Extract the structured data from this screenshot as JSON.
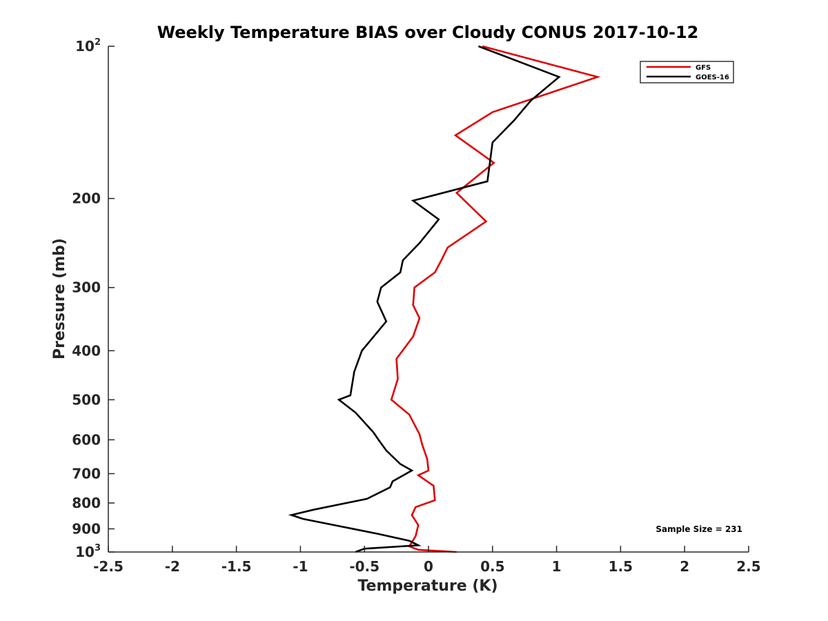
{
  "chart_data": {
    "type": "line",
    "title": "Weekly Temperature BIAS over Cloudy CONUS 2017-10-12",
    "xlabel": "Temperature (K)",
    "ylabel": "Pressure (mb)",
    "xlim": [
      -2.5,
      2.5
    ],
    "ylim": [
      100,
      1000
    ],
    "y_scale": "log",
    "y_reversed": true,
    "grid": false,
    "legend_position": "top-right",
    "x_ticks": [
      -2.5,
      -2,
      -1.5,
      -1,
      -0.5,
      0,
      0.5,
      1,
      1.5,
      2,
      2.5
    ],
    "x_tick_labels": [
      "-2.5",
      "-2",
      "-1.5",
      "-1",
      "-0.5",
      "0",
      "0.5",
      "1",
      "1.5",
      "2",
      "2.5"
    ],
    "y_ticks": [
      {
        "value": 100,
        "base": "10",
        "exp": "2"
      },
      {
        "value": 200,
        "label": "200"
      },
      {
        "value": 300,
        "label": "300"
      },
      {
        "value": 400,
        "label": "400"
      },
      {
        "value": 500,
        "label": "500"
      },
      {
        "value": 600,
        "label": "600"
      },
      {
        "value": 700,
        "label": "700"
      },
      {
        "value": 800,
        "label": "800"
      },
      {
        "value": 900,
        "label": "900"
      },
      {
        "value": 1000,
        "base": "10",
        "exp": "3"
      }
    ],
    "annotation": "Sample Size = 231",
    "series": [
      {
        "name": "GFS",
        "color": "#e00000",
        "points": [
          [
            0.42,
            100
          ],
          [
            1.32,
            115
          ],
          [
            0.5,
            135
          ],
          [
            0.21,
            150
          ],
          [
            0.51,
            170
          ],
          [
            0.22,
            195
          ],
          [
            0.45,
            222
          ],
          [
            0.15,
            250
          ],
          [
            0.1,
            265
          ],
          [
            0.05,
            280
          ],
          [
            -0.11,
            300
          ],
          [
            -0.12,
            325
          ],
          [
            -0.07,
            345
          ],
          [
            -0.12,
            375
          ],
          [
            -0.25,
            415
          ],
          [
            -0.24,
            455
          ],
          [
            -0.29,
            500
          ],
          [
            -0.15,
            535
          ],
          [
            -0.07,
            585
          ],
          [
            -0.05,
            612
          ],
          [
            -0.01,
            655
          ],
          [
            0.0,
            690
          ],
          [
            -0.08,
            705
          ],
          [
            0.04,
            740
          ],
          [
            0.05,
            790
          ],
          [
            -0.1,
            815
          ],
          [
            -0.13,
            845
          ],
          [
            -0.08,
            885
          ],
          [
            -0.1,
            930
          ],
          [
            -0.15,
            975
          ],
          [
            -0.08,
            990
          ],
          [
            0.22,
            1000
          ]
        ]
      },
      {
        "name": "GOES-16",
        "color": "#000000",
        "points": [
          [
            0.39,
            100
          ],
          [
            1.02,
            115
          ],
          [
            0.8,
            128
          ],
          [
            0.67,
            140
          ],
          [
            0.5,
            155
          ],
          [
            0.46,
            185
          ],
          [
            -0.12,
            202
          ],
          [
            0.08,
            220
          ],
          [
            -0.07,
            245
          ],
          [
            -0.2,
            265
          ],
          [
            -0.22,
            280
          ],
          [
            -0.37,
            300
          ],
          [
            -0.4,
            320
          ],
          [
            -0.33,
            350
          ],
          [
            -0.52,
            400
          ],
          [
            -0.58,
            440
          ],
          [
            -0.61,
            490
          ],
          [
            -0.7,
            500
          ],
          [
            -0.57,
            530
          ],
          [
            -0.43,
            580
          ],
          [
            -0.39,
            600
          ],
          [
            -0.33,
            630
          ],
          [
            -0.22,
            670
          ],
          [
            -0.13,
            690
          ],
          [
            -0.28,
            725
          ],
          [
            -0.3,
            745
          ],
          [
            -0.48,
            785
          ],
          [
            -0.9,
            825
          ],
          [
            -1.07,
            845
          ],
          [
            -0.98,
            860
          ],
          [
            -0.4,
            920
          ],
          [
            -0.15,
            950
          ],
          [
            -0.08,
            970
          ],
          [
            -0.5,
            985
          ],
          [
            -0.57,
            1000
          ]
        ]
      }
    ]
  }
}
